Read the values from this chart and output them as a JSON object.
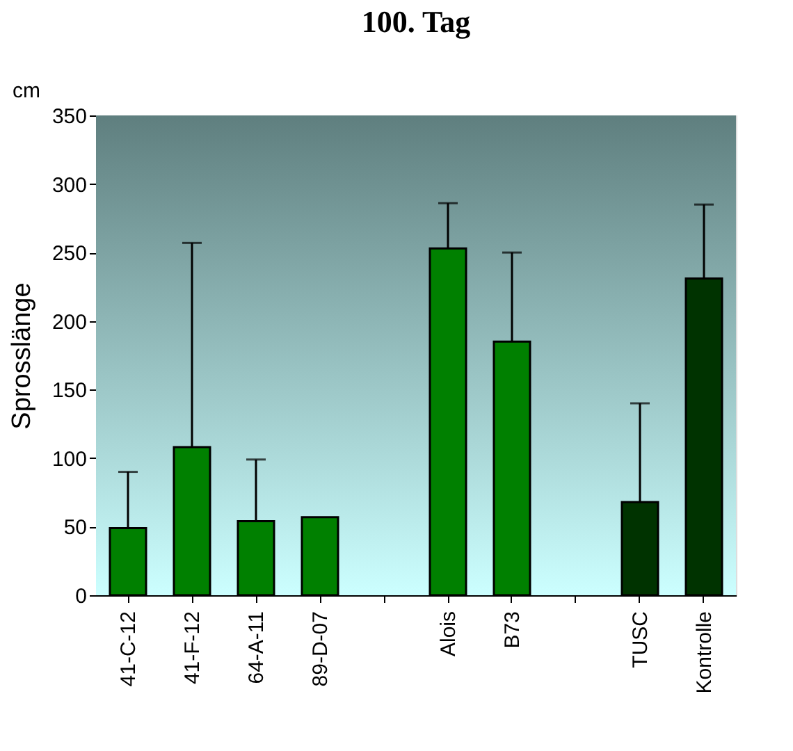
{
  "chart_data": {
    "type": "bar",
    "title": "100. Tag",
    "ylabel": "Sprosslänge",
    "annotations": [
      "cm"
    ],
    "categories": [
      "41-C-12",
      "41-F-12",
      "64-A-11",
      "89-D-07",
      null,
      "Alois",
      "B73",
      null,
      "TUSC",
      "Kontrolle"
    ],
    "values": [
      49,
      108,
      54,
      57,
      null,
      253,
      185,
      null,
      68,
      231
    ],
    "errors": [
      [
        49,
        90
      ],
      [
        108,
        257
      ],
      [
        54,
        99
      ],
      null,
      null,
      [
        253,
        286
      ],
      [
        185,
        250
      ],
      null,
      [
        68,
        140
      ],
      [
        231,
        285
      ]
    ],
    "colors": [
      "#008000",
      "#008000",
      "#008000",
      "#008000",
      "#008000",
      "#008000",
      "#008000",
      "#008000",
      "#003300",
      "#003300"
    ],
    "ylim": [
      0,
      350
    ],
    "yticks": [
      0,
      50,
      100,
      150,
      200,
      250,
      300,
      350
    ]
  }
}
